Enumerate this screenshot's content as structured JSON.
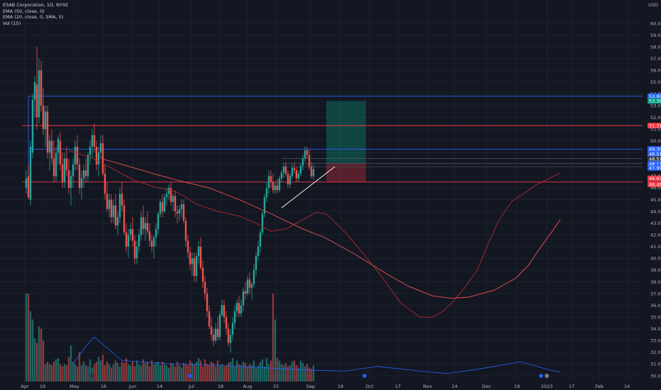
{
  "header": {
    "title": "ESAB Corporation, 1D, NYSE",
    "indicators": [
      "EMA (50, close, 0)",
      "EMA (20, close, 0, SMA, 5)",
      "Vol (15)"
    ],
    "currency": "USD"
  },
  "colors": {
    "background": "#131722",
    "up": "#26a69a",
    "down": "#ef5350",
    "grid": "#1e222d",
    "axis_text": "#b2b5be",
    "blue_line": "#2962ff",
    "red_line": "#f23645",
    "ema_50": "#ef5350",
    "ema_20": "#b22833",
    "vol_ma": "#2962ff",
    "trendline": "#ffffff",
    "profit_zone": "rgba(8,153,129,0.35)",
    "loss_zone": "rgba(242,54,69,0.30)"
  },
  "chart_data": {
    "type": "candlestick",
    "symbol": "ESAB Corporation",
    "interval": "1D",
    "exchange": "NYSE",
    "y_axis": {
      "range": [
        29.5,
        61.0
      ],
      "ticks": [
        "30.00",
        "31.00",
        "32.00",
        "33.00",
        "34.00",
        "35.00",
        "36.00",
        "37.00",
        "38.00",
        "39.00",
        "40.00",
        "41.00",
        "42.00",
        "43.00",
        "44.00",
        "45.00",
        "46.00",
        "47.00",
        "48.00",
        "49.00",
        "50.00",
        "51.00",
        "52.00",
        "53.00",
        "54.00",
        "55.00",
        "56.00",
        "57.00",
        "58.00",
        "59.00",
        "60.00"
      ]
    },
    "x_axis": {
      "labels": [
        "Apr",
        "19",
        "May",
        "16",
        "Jun",
        "14",
        "Jul",
        "18",
        "Aug",
        "15",
        "Sep",
        "19",
        "Oct",
        "17",
        "Nov",
        "14",
        "Dec",
        "19",
        "2023",
        "17",
        "Feb",
        "14"
      ]
    },
    "candles_ohlc": [
      [
        46.0,
        47.5,
        45.5,
        46.8
      ],
      [
        47.0,
        48.0,
        45.0,
        45.2
      ],
      [
        45.0,
        50.0,
        44.5,
        49.5
      ],
      [
        49.0,
        54.0,
        48.5,
        53.5
      ],
      [
        53.5,
        55.5,
        52.0,
        55.0
      ],
      [
        54.8,
        58.0,
        51.0,
        52.0
      ],
      [
        52.0,
        57.0,
        51.5,
        56.0
      ],
      [
        56.0,
        56.8,
        52.5,
        53.0
      ],
      [
        53.0,
        54.5,
        50.5,
        51.0
      ],
      [
        51.0,
        53.0,
        49.5,
        52.5
      ],
      [
        52.5,
        53.0,
        48.5,
        49.0
      ],
      [
        49.0,
        50.5,
        47.5,
        50.0
      ],
      [
        50.0,
        51.0,
        48.0,
        48.5
      ],
      [
        48.5,
        50.0,
        46.5,
        47.0
      ],
      [
        47.0,
        49.5,
        46.5,
        49.0
      ],
      [
        49.0,
        50.5,
        48.0,
        50.2
      ],
      [
        50.0,
        50.8,
        47.5,
        48.0
      ],
      [
        48.0,
        49.0,
        46.0,
        46.5
      ],
      [
        46.5,
        49.0,
        46.0,
        48.5
      ],
      [
        48.5,
        49.5,
        47.0,
        47.5
      ],
      [
        47.5,
        48.5,
        45.5,
        46.0
      ],
      [
        46.0,
        47.5,
        44.5,
        47.0
      ],
      [
        47.0,
        48.5,
        46.0,
        48.0
      ],
      [
        48.0,
        50.0,
        47.5,
        49.5
      ],
      [
        49.5,
        50.5,
        47.5,
        48.0
      ],
      [
        48.0,
        48.5,
        45.5,
        46.0
      ],
      [
        46.0,
        47.5,
        45.0,
        46.8
      ],
      [
        46.8,
        48.0,
        46.0,
        47.5
      ],
      [
        47.5,
        48.5,
        46.5,
        47.0
      ],
      [
        47.0,
        49.0,
        46.5,
        48.8
      ],
      [
        48.8,
        50.0,
        48.0,
        49.5
      ],
      [
        49.5,
        51.0,
        48.5,
        50.5
      ],
      [
        50.5,
        51.5,
        49.0,
        49.5
      ],
      [
        49.5,
        50.0,
        47.5,
        48.0
      ],
      [
        48.0,
        49.5,
        47.0,
        49.0
      ],
      [
        49.0,
        50.5,
        48.5,
        49.8
      ],
      [
        49.8,
        50.5,
        47.0,
        47.2
      ],
      [
        47.2,
        48.0,
        45.0,
        45.5
      ],
      [
        45.5,
        46.5,
        44.0,
        44.2
      ],
      [
        44.2,
        45.5,
        43.5,
        45.0
      ],
      [
        45.0,
        45.5,
        43.0,
        43.5
      ],
      [
        43.5,
        45.0,
        43.0,
        44.5
      ],
      [
        44.5,
        45.5,
        42.5,
        42.8
      ],
      [
        42.8,
        44.0,
        42.0,
        43.5
      ],
      [
        43.5,
        46.0,
        43.0,
        45.5
      ],
      [
        45.5,
        46.5,
        44.0,
        44.5
      ],
      [
        44.5,
        45.0,
        42.0,
        42.2
      ],
      [
        42.2,
        43.0,
        40.5,
        41.0
      ],
      [
        41.0,
        42.5,
        40.0,
        42.0
      ],
      [
        42.0,
        43.0,
        41.5,
        42.5
      ],
      [
        42.5,
        43.5,
        41.0,
        41.5
      ],
      [
        41.5,
        42.0,
        39.5,
        40.0
      ],
      [
        40.0,
        41.5,
        39.5,
        41.0
      ],
      [
        41.0,
        42.5,
        40.5,
        42.0
      ],
      [
        42.0,
        44.0,
        41.5,
        43.5
      ],
      [
        43.5,
        44.5,
        42.0,
        42.5
      ],
      [
        42.5,
        43.5,
        41.5,
        43.0
      ],
      [
        43.0,
        44.0,
        42.0,
        42.3
      ],
      [
        42.3,
        43.0,
        41.0,
        41.5
      ],
      [
        41.5,
        42.0,
        40.5,
        41.0
      ],
      [
        41.0,
        42.0,
        40.0,
        41.8
      ],
      [
        41.8,
        43.0,
        41.0,
        42.5
      ],
      [
        42.5,
        44.0,
        42.0,
        43.8
      ],
      [
        43.8,
        45.0,
        43.5,
        44.8
      ],
      [
        44.8,
        45.5,
        43.5,
        44.0
      ],
      [
        44.0,
        45.5,
        43.8,
        45.2
      ],
      [
        45.2,
        46.0,
        44.5,
        45.5
      ],
      [
        45.5,
        46.3,
        45.0,
        46.0
      ],
      [
        46.0,
        46.5,
        44.5,
        44.8
      ],
      [
        44.8,
        45.5,
        44.0,
        45.3
      ],
      [
        45.3,
        45.8,
        43.5,
        44.0
      ],
      [
        44.0,
        44.5,
        43.0,
        43.8
      ],
      [
        43.8,
        44.5,
        43.2,
        44.2
      ],
      [
        44.2,
        45.0,
        43.5,
        44.6
      ],
      [
        44.6,
        45.0,
        43.0,
        43.2
      ],
      [
        43.2,
        43.5,
        41.0,
        41.5
      ],
      [
        41.5,
        42.0,
        40.0,
        40.5
      ],
      [
        40.5,
        41.0,
        39.0,
        39.5
      ],
      [
        39.5,
        40.5,
        38.5,
        40.0
      ],
      [
        40.0,
        40.5,
        38.0,
        38.5
      ],
      [
        38.5,
        40.5,
        38.0,
        40.2
      ],
      [
        40.2,
        41.5,
        39.5,
        41.0
      ],
      [
        41.0,
        41.8,
        39.0,
        39.2
      ],
      [
        39.2,
        39.8,
        37.5,
        38.0
      ],
      [
        38.0,
        38.5,
        36.5,
        37.0
      ],
      [
        37.0,
        37.5,
        35.0,
        35.5
      ],
      [
        35.5,
        36.0,
        34.0,
        34.2
      ],
      [
        34.2,
        35.0,
        33.0,
        33.5
      ],
      [
        33.5,
        34.0,
        32.5,
        33.0
      ],
      [
        33.0,
        34.5,
        32.8,
        34.0
      ],
      [
        34.0,
        35.0,
        33.0,
        33.3
      ],
      [
        33.3,
        35.5,
        33.0,
        35.2
      ],
      [
        35.2,
        36.5,
        35.0,
        36.0
      ],
      [
        36.0,
        36.5,
        34.5,
        35.0
      ],
      [
        35.0,
        35.5,
        33.5,
        34.0
      ],
      [
        34.0,
        34.5,
        32.5,
        32.8
      ],
      [
        32.8,
        34.0,
        32.0,
        33.5
      ],
      [
        33.5,
        35.0,
        33.0,
        34.5
      ],
      [
        34.5,
        36.0,
        34.0,
        35.5
      ],
      [
        35.5,
        36.5,
        35.0,
        36.2
      ],
      [
        36.2,
        36.8,
        35.0,
        35.3
      ],
      [
        35.3,
        36.5,
        35.0,
        36.0
      ],
      [
        36.0,
        37.5,
        35.5,
        37.2
      ],
      [
        37.2,
        38.0,
        36.5,
        37.0
      ],
      [
        37.0,
        38.5,
        36.8,
        38.2
      ],
      [
        38.2,
        38.8,
        37.0,
        37.5
      ],
      [
        37.5,
        38.0,
        36.5,
        37.8
      ],
      [
        37.8,
        39.5,
        37.5,
        39.0
      ],
      [
        39.0,
        40.5,
        38.5,
        40.2
      ],
      [
        40.2,
        41.5,
        39.8,
        41.0
      ],
      [
        41.0,
        42.5,
        40.5,
        42.2
      ],
      [
        42.2,
        44.0,
        42.0,
        43.8
      ],
      [
        43.8,
        45.5,
        43.5,
        45.2
      ],
      [
        45.2,
        46.5,
        44.8,
        46.0
      ],
      [
        46.0,
        47.5,
        45.5,
        47.0
      ],
      [
        47.0,
        47.5,
        46.0,
        46.5
      ],
      [
        46.5,
        47.2,
        45.5,
        45.8
      ],
      [
        45.8,
        46.5,
        45.5,
        46.2
      ],
      [
        46.2,
        46.8,
        45.5,
        45.8
      ],
      [
        45.8,
        47.0,
        45.6,
        46.8
      ],
      [
        46.8,
        47.5,
        46.5,
        47.3
      ],
      [
        47.3,
        48.0,
        46.8,
        47.8
      ],
      [
        47.8,
        48.2,
        47.0,
        47.2
      ],
      [
        47.2,
        47.5,
        46.0,
        46.3
      ],
      [
        46.3,
        47.3,
        46.0,
        47.0
      ],
      [
        47.0,
        48.0,
        46.8,
        47.7
      ],
      [
        47.7,
        48.2,
        47.2,
        47.5
      ],
      [
        47.5,
        47.8,
        46.5,
        46.8
      ],
      [
        46.8,
        47.5,
        46.5,
        47.2
      ],
      [
        47.2,
        48.0,
        47.0,
        47.9
      ],
      [
        47.9,
        48.8,
        47.5,
        48.5
      ],
      [
        48.5,
        49.5,
        48.2,
        49.2
      ],
      [
        49.2,
        49.5,
        48.5,
        48.8
      ],
      [
        48.8,
        49.3,
        47.5,
        47.8
      ],
      [
        47.8,
        48.2,
        46.8,
        47.0
      ],
      [
        47.0,
        48.0,
        46.7,
        47.6
      ]
    ],
    "volume_in_axis_units": [
      37.0,
      37.0,
      35.5,
      34.8,
      33.2,
      32.8,
      34.2,
      34.0,
      33.0,
      31.0,
      31.2,
      31.0,
      30.9,
      31.2,
      31.4,
      31.5,
      31.0,
      30.8,
      31.0,
      30.9,
      31.6,
      32.6,
      31.2,
      31.0,
      30.8,
      32.0,
      30.9,
      31.2,
      30.9,
      30.8,
      31.4,
      30.7,
      31.0,
      31.2,
      31.6,
      31.3,
      31.8,
      30.9,
      31.2,
      31.0,
      30.7,
      31.0,
      31.3,
      31.1,
      30.8,
      31.2,
      31.1,
      31.5,
      31.0,
      30.9,
      31.2,
      30.8,
      31.3,
      31.0,
      30.9,
      31.4,
      31.1,
      31.2,
      30.8,
      31.3,
      31.0,
      31.1,
      31.2,
      30.9,
      31.2,
      31.0,
      30.9,
      30.7,
      31.1,
      31.0,
      30.8,
      31.2,
      30.9,
      30.7,
      31.1,
      31.0,
      30.9,
      31.3,
      31.1,
      31.0,
      31.2,
      31.5,
      31.3,
      30.8,
      31.4,
      31.0,
      30.9,
      31.2,
      31.1,
      30.8,
      31.3,
      30.9,
      31.0,
      30.8,
      30.9,
      31.1,
      31.2,
      31.5,
      30.8,
      31.3,
      31.0,
      30.9,
      31.2,
      31.1,
      30.8,
      31.0,
      30.9,
      31.3,
      30.7,
      30.9,
      31.2,
      31.4,
      30.8,
      31.5,
      31.0,
      31.3,
      37.0,
      34.8,
      31.5,
      31.3,
      31.0,
      30.9,
      31.1,
      30.8,
      30.9,
      31.2,
      31.3,
      30.9,
      30.7,
      31.3,
      31.1,
      30.8,
      31.0,
      30.7,
      30.6,
      30.9,
      30.8,
      30.7,
      30.6
    ],
    "ema_50": [
      [
        35,
        48.5
      ],
      [
        45,
        48.0
      ],
      [
        60,
        47.2
      ],
      [
        72,
        46.6
      ],
      [
        86,
        46.0
      ],
      [
        100,
        45.0
      ],
      [
        115,
        43.8
      ],
      [
        130,
        42.5
      ],
      [
        140,
        41.8
      ],
      [
        155,
        40.3
      ],
      [
        170,
        38.6
      ],
      [
        180,
        37.6
      ],
      [
        191,
        36.8
      ],
      [
        200,
        36.6
      ],
      [
        208,
        36.7
      ],
      [
        220,
        37.3
      ],
      [
        230,
        38.3
      ],
      [
        236,
        39.4
      ],
      [
        240,
        40.5
      ],
      [
        246,
        42.0
      ],
      [
        251,
        43.3
      ]
    ],
    "ema_20": [
      [
        20,
        49.2
      ],
      [
        30,
        48.6
      ],
      [
        40,
        47.7
      ],
      [
        50,
        46.7
      ],
      [
        60,
        46.1
      ],
      [
        70,
        45.7
      ],
      [
        75,
        45.2
      ],
      [
        80,
        44.6
      ],
      [
        90,
        44.0
      ],
      [
        100,
        43.6
      ],
      [
        108,
        43.0
      ],
      [
        115,
        42.3
      ],
      [
        122,
        42.5
      ],
      [
        130,
        43.3
      ],
      [
        136,
        43.9
      ],
      [
        141,
        43.8
      ],
      [
        150,
        42.2
      ],
      [
        158,
        40.5
      ],
      [
        166,
        38.7
      ],
      [
        176,
        36.2
      ],
      [
        185,
        35.0
      ],
      [
        191,
        35.0
      ],
      [
        196,
        35.5
      ],
      [
        200,
        36.2
      ],
      [
        206,
        37.5
      ],
      [
        212,
        39.0
      ],
      [
        217,
        41.2
      ],
      [
        222,
        43.2
      ],
      [
        228,
        44.8
      ],
      [
        236,
        45.8
      ],
      [
        240,
        46.3
      ],
      [
        246,
        46.8
      ],
      [
        251,
        47.3
      ]
    ],
    "vol_ma": [
      [
        22,
        31.0
      ],
      [
        28,
        32.5
      ],
      [
        32,
        33.3
      ],
      [
        45,
        31.3
      ],
      [
        70,
        31.0
      ],
      [
        90,
        30.9
      ],
      [
        110,
        30.7
      ],
      [
        130,
        30.5
      ],
      [
        150,
        30.4
      ],
      [
        165,
        30.8
      ],
      [
        185,
        30.4
      ],
      [
        198,
        30.2
      ],
      [
        210,
        30.5
      ],
      [
        220,
        30.8
      ],
      [
        232,
        31.2
      ],
      [
        246,
        30.5
      ],
      [
        251,
        30.3
      ]
    ],
    "horizontal_lines": [
      {
        "price": 53.8,
        "color": "blue",
        "x_start": 1
      },
      {
        "price": 51.3,
        "color": "red",
        "x_start": -2
      },
      {
        "price": 49.3,
        "color": "blue",
        "x_start": 3
      },
      {
        "price": 46.5,
        "color": "red",
        "x_start": -2
      }
    ],
    "level_lines": [
      {
        "price": 48.5,
        "x_start": 120,
        "x_end": 252
      },
      {
        "price": 48.1,
        "x_start": 120,
        "x_end": 252
      },
      {
        "price": 47.8,
        "x_start": 120,
        "x_end": 252
      }
    ],
    "trendline": {
      "start": [
        120,
        44.3
      ],
      "end": [
        145,
        47.8
      ]
    },
    "position": {
      "entry": 48.1,
      "target": 53.4,
      "stop": 46.5,
      "x_start": 141,
      "x_end": 157
    },
    "price_labels": [
      {
        "text": "53.80",
        "price": 53.8,
        "color": "#2962ff"
      },
      {
        "text": "53.36",
        "price": 53.4,
        "color": "#089981"
      },
      {
        "text": "51.31",
        "price": 51.3,
        "color": "#f23645"
      },
      {
        "text": "49.30",
        "price": 49.3,
        "color": "#2962ff"
      },
      {
        "text": "48.51",
        "price": 48.9,
        "color": "#2962ff"
      },
      {
        "text": "48.51",
        "price": 48.45,
        "color": "#363a45"
      },
      {
        "text": "48.11",
        "price": 48.05,
        "color": "#2962ff"
      },
      {
        "text": "47.99",
        "price": 47.7,
        "color": "#2962ff"
      },
      {
        "text": "46.87",
        "price": 46.8,
        "color": "#f23645"
      },
      {
        "text": "46.49",
        "price": 46.3,
        "color": "#f23645"
      }
    ]
  }
}
